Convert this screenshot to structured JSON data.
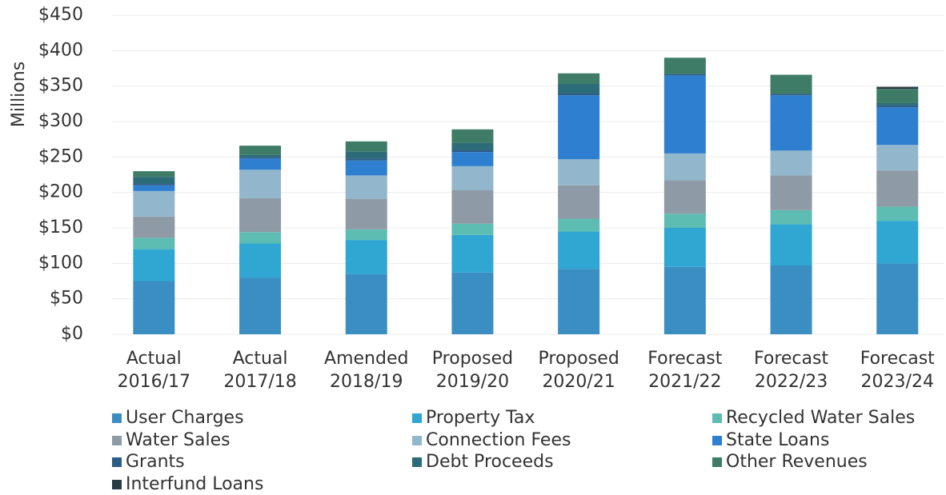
{
  "chart_data": {
    "type": "stacked-bar",
    "y_label": "Millions",
    "categories": [
      "Actual 2016/17",
      "Actual 2017/18",
      "Amended 2018/19",
      "Proposed 2019/20",
      "Proposed 2020/21",
      "Forecast 2021/22",
      "Forecast 2022/23",
      "Forecast 2023/24"
    ],
    "series": [
      {
        "name": "User Charges",
        "color": "#3a8ec2",
        "values": [
          75,
          80,
          85,
          87,
          92,
          95,
          97,
          100
        ]
      },
      {
        "name": "Property Tax",
        "color": "#2fa7d2",
        "values": [
          45,
          48,
          48,
          53,
          53,
          55,
          58,
          60
        ]
      },
      {
        "name": "Recycled Water Sales",
        "color": "#5ebdb2",
        "values": [
          16,
          16,
          15,
          16,
          18,
          20,
          20,
          20
        ]
      },
      {
        "name": "Water Sales",
        "color": "#8e9aa5",
        "values": [
          30,
          48,
          43,
          47,
          47,
          47,
          49,
          51
        ]
      },
      {
        "name": "Connection Fees",
        "color": "#92b6cb",
        "values": [
          36,
          40,
          33,
          34,
          37,
          38,
          35,
          36
        ]
      },
      {
        "name": "State Loans",
        "color": "#2f7fd0",
        "values": [
          8,
          16,
          21,
          20,
          90,
          110,
          78,
          53
        ]
      },
      {
        "name": "Grants",
        "color": "#2d5d86",
        "values": [
          2,
          2,
          3,
          3,
          3,
          2,
          2,
          3
        ]
      },
      {
        "name": "Debt Proceeds",
        "color": "#2c6c78",
        "values": [
          10,
          3,
          10,
          10,
          13,
          0,
          0,
          3
        ]
      },
      {
        "name": "Other Revenues",
        "color": "#3e7c68",
        "values": [
          8,
          13,
          14,
          19,
          15,
          23,
          27,
          20
        ]
      },
      {
        "name": "Interfund Loans",
        "color": "#2a3a44",
        "values": [
          0,
          0,
          0,
          0,
          0,
          0,
          0,
          3
        ]
      }
    ],
    "ylim": [
      0,
      450
    ],
    "yticks": [
      {
        "value": 0,
        "label": "$0"
      },
      {
        "value": 50,
        "label": "$50"
      },
      {
        "value": 100,
        "label": "$100"
      },
      {
        "value": 150,
        "label": "$150"
      },
      {
        "value": 200,
        "label": "$200"
      },
      {
        "value": 250,
        "label": "$250"
      },
      {
        "value": 300,
        "label": "$300"
      },
      {
        "value": 350,
        "label": "$350"
      },
      {
        "value": 400,
        "label": "$400"
      },
      {
        "value": 450,
        "label": "$450"
      }
    ],
    "grid": true
  }
}
